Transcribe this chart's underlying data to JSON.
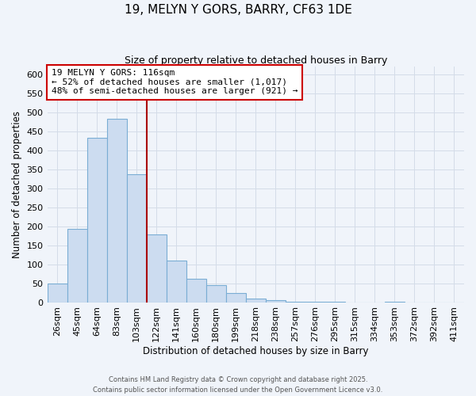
{
  "title": "19, MELYN Y GORS, BARRY, CF63 1DE",
  "subtitle": "Size of property relative to detached houses in Barry",
  "xlabel": "Distribution of detached houses by size in Barry",
  "ylabel": "Number of detached properties",
  "bin_labels": [
    "26sqm",
    "45sqm",
    "64sqm",
    "83sqm",
    "103sqm",
    "122sqm",
    "141sqm",
    "160sqm",
    "180sqm",
    "199sqm",
    "218sqm",
    "238sqm",
    "257sqm",
    "276sqm",
    "295sqm",
    "315sqm",
    "334sqm",
    "353sqm",
    "372sqm",
    "392sqm",
    "411sqm"
  ],
  "bar_values": [
    50,
    193,
    433,
    483,
    337,
    178,
    109,
    61,
    44,
    25,
    10,
    5,
    2,
    1,
    1,
    0,
    0,
    1,
    0,
    0,
    0
  ],
  "bar_color": "#ccdcf0",
  "bar_edge_color": "#7aadd4",
  "grid_color": "#d4dce8",
  "vline_x": 5.0,
  "vline_color": "#aa0000",
  "annotation_text": "19 MELYN Y GORS: 116sqm\n← 52% of detached houses are smaller (1,017)\n48% of semi-detached houses are larger (921) →",
  "annotation_box_color": "#ffffff",
  "annotation_box_edge_color": "#cc0000",
  "ylim": [
    0,
    620
  ],
  "yticks": [
    0,
    50,
    100,
    150,
    200,
    250,
    300,
    350,
    400,
    450,
    500,
    550,
    600
  ],
  "footer1": "Contains HM Land Registry data © Crown copyright and database right 2025.",
  "footer2": "Contains public sector information licensed under the Open Government Licence v3.0.",
  "background_color": "#f0f4fa"
}
